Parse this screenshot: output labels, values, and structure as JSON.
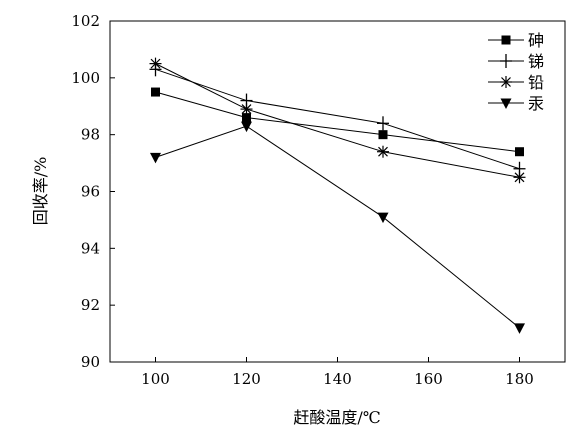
{
  "chart_data": {
    "type": "line",
    "title": "",
    "xlabel": "赶酸温度/℃",
    "ylabel": "回收率/%",
    "x": [
      100,
      120,
      150,
      180
    ],
    "xlim": [
      90,
      190
    ],
    "ylim": [
      90,
      102
    ],
    "xticks": [
      100,
      120,
      140,
      160,
      180
    ],
    "yticks": [
      90,
      92,
      94,
      96,
      98,
      100,
      102
    ],
    "grid": false,
    "legend_position": "top-right",
    "series": [
      {
        "name": "砷",
        "marker": "square",
        "values": [
          99.5,
          98.6,
          98.0,
          97.4
        ]
      },
      {
        "name": "锑",
        "marker": "plus",
        "values": [
          100.3,
          99.2,
          98.4,
          96.8
        ]
      },
      {
        "name": "铅",
        "marker": "asterisk",
        "values": [
          100.5,
          98.9,
          97.4,
          96.5
        ]
      },
      {
        "name": "汞",
        "marker": "triangle-down",
        "values": [
          97.2,
          98.3,
          95.1,
          91.2
        ]
      }
    ],
    "colors": {
      "line": "#000000",
      "background": "#ffffff"
    }
  }
}
